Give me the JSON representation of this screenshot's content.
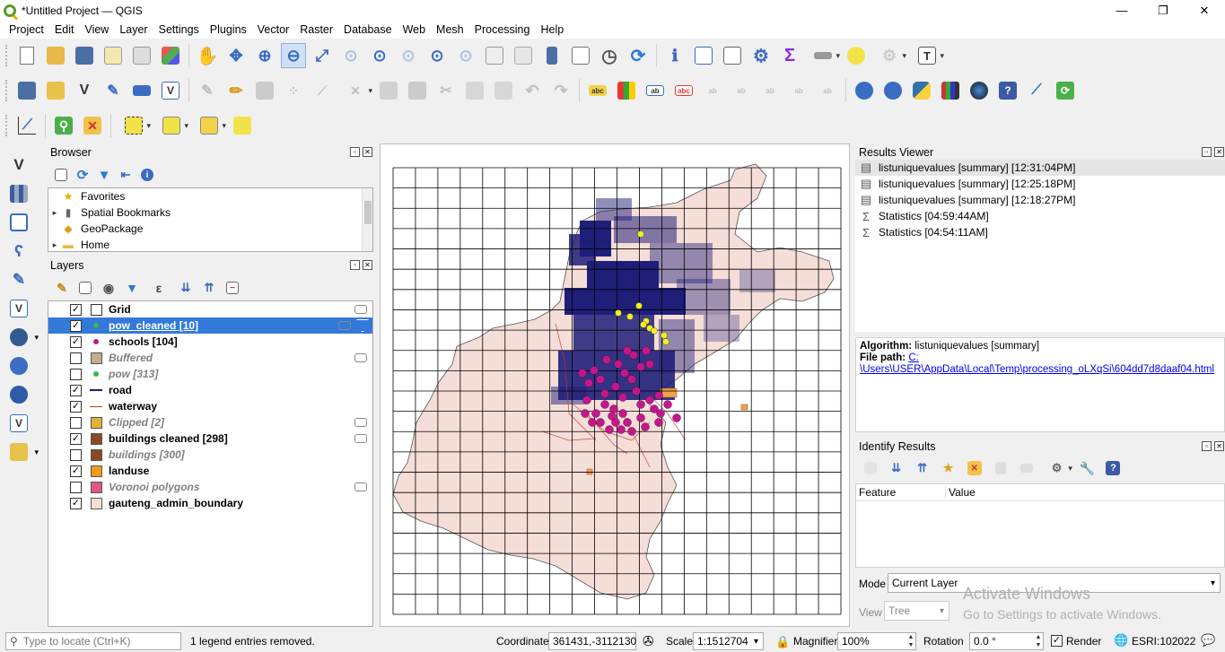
{
  "window": {
    "title": "*Untitled Project — QGIS",
    "min": "—",
    "max": "❐",
    "close": "✕"
  },
  "menu": [
    "Project",
    "Edit",
    "View",
    "Layer",
    "Settings",
    "Plugins",
    "Vector",
    "Raster",
    "Database",
    "Web",
    "Mesh",
    "Processing",
    "Help"
  ],
  "browser": {
    "title": "Browser",
    "items": [
      {
        "label": "Favorites",
        "icon": "star-icon",
        "arrow": ""
      },
      {
        "label": "Spatial Bookmarks",
        "icon": "bookmark-icon",
        "arrow": "▸"
      },
      {
        "label": "GeoPackage",
        "icon": "geopackage-icon",
        "arrow": ""
      },
      {
        "label": "Home",
        "icon": "folder-icon",
        "arrow": "▸"
      }
    ]
  },
  "layers": {
    "title": "Layers",
    "items": [
      {
        "name": "Grid",
        "checked": true,
        "visible_style": "normal",
        "symbol": "fill-white"
      },
      {
        "name": "pow_cleaned [10]",
        "checked": true,
        "visible_style": "selected",
        "symbol": "point-green"
      },
      {
        "name": "schools [104]",
        "checked": true,
        "visible_style": "normal",
        "symbol": "point-magenta"
      },
      {
        "name": "Buffered",
        "checked": false,
        "visible_style": "off",
        "symbol": "fill-tan"
      },
      {
        "name": "pow [313]",
        "checked": false,
        "visible_style": "off",
        "symbol": "point-green"
      },
      {
        "name": "road",
        "checked": true,
        "visible_style": "normal",
        "symbol": "line-navy"
      },
      {
        "name": "waterway",
        "checked": true,
        "visible_style": "normal",
        "symbol": "line-red"
      },
      {
        "name": "Clipped [2]",
        "checked": false,
        "visible_style": "off",
        "symbol": "fill-gold"
      },
      {
        "name": "buildings cleaned [298]",
        "checked": true,
        "visible_style": "normal",
        "symbol": "fill-brown"
      },
      {
        "name": "buildings [300]",
        "checked": false,
        "visible_style": "off",
        "symbol": "fill-brown"
      },
      {
        "name": "landuse",
        "checked": true,
        "visible_style": "normal",
        "symbol": "fill-orange"
      },
      {
        "name": "Voronoi polygons",
        "checked": false,
        "visible_style": "off",
        "symbol": "fill-pink"
      },
      {
        "name": "gauteng_admin_boundary",
        "checked": true,
        "visible_style": "normal",
        "symbol": "fill-blush"
      }
    ]
  },
  "results_viewer": {
    "title": "Results Viewer",
    "items": [
      {
        "label": "listuniquevalues [summary] [12:31:04PM]",
        "icon": "table-icon"
      },
      {
        "label": "listuniquevalues [summary] [12:25:18PM]",
        "icon": "table-icon"
      },
      {
        "label": "listuniquevalues [summary] [12:18:27PM]",
        "icon": "table-icon"
      },
      {
        "label": "Statistics [04:59:44AM]",
        "icon": "sigma-icon"
      },
      {
        "label": "Statistics [04:54:11AM]",
        "icon": "sigma-icon"
      }
    ],
    "algorithm_label": "Algorithm:",
    "algorithm_value": "listuniquevalues [summary]",
    "filepath_label": "File path:",
    "filepath_link_1": "C:",
    "filepath_link_2": "\\Users\\USER\\AppData\\Local\\Temp\\processing_oLXqSi\\604dd7d8daaf04.html"
  },
  "identify": {
    "title": "Identify Results",
    "col_feature": "Feature",
    "col_value": "Value",
    "mode_label": "Mode",
    "mode_value": "Current Layer",
    "view_label": "View",
    "view_value": "Tree"
  },
  "watermark": {
    "line1": "Activate Windows",
    "line2": "Go to Settings to activate Windows."
  },
  "status": {
    "locate_placeholder": "Type to locate (Ctrl+K)",
    "message": "1 legend entries removed.",
    "coordinate_label": "Coordinate",
    "coordinate_value": "361431,-3112130",
    "scale_label": "Scale",
    "scale_value": "1:1512704",
    "magnifier_label": "Magnifier",
    "magnifier_value": "100%",
    "rotation_label": "Rotation",
    "rotation_value": "0.0 °",
    "render_label": "Render",
    "crs_value": "ESRI:102022"
  }
}
